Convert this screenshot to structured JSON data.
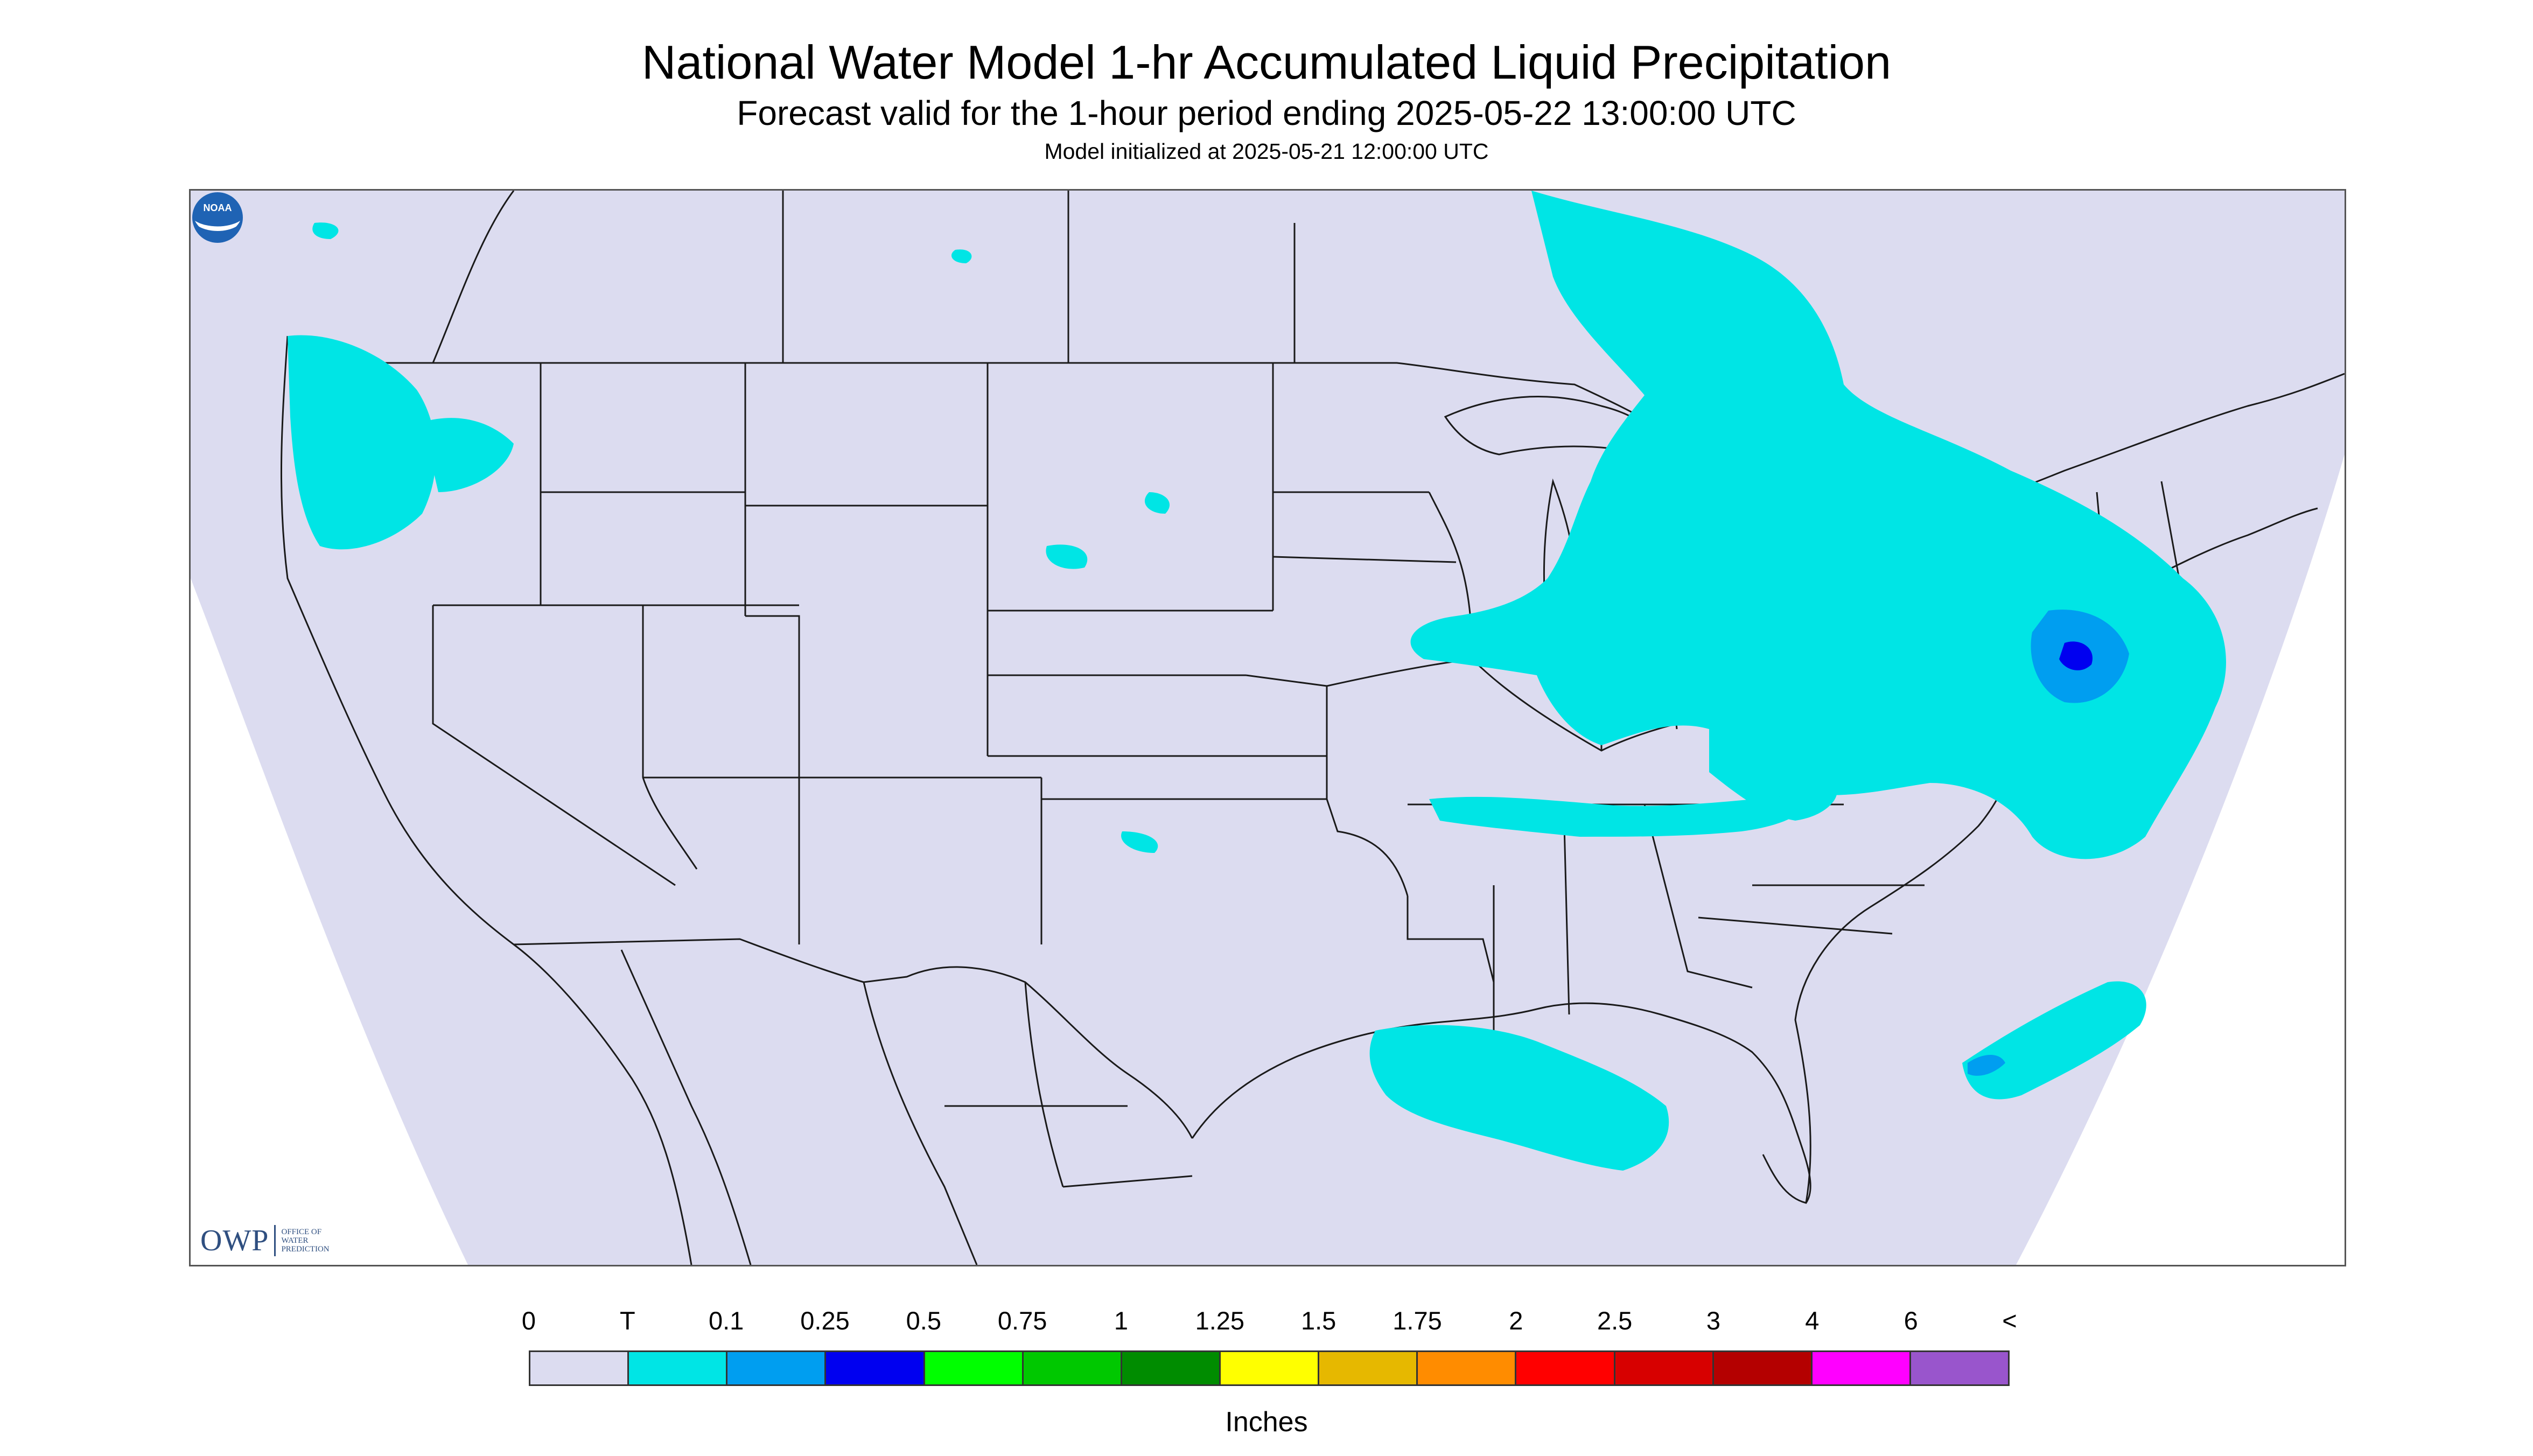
{
  "title": "National Water Model 1-hr Accumulated Liquid Precipitation",
  "subtitle": "Forecast valid for the 1-hour period ending 2025-05-22 13:00:00 UTC",
  "init_line": "Model initialized at 2025-05-21 12:00:00 UTC",
  "map": {
    "domain_color": "#dcdcf0",
    "outside_color": "#ffffff",
    "border_color": "#1a1a1a",
    "precip_colors": {
      "trace": "#00e5e5",
      "tenth": "#009ef0",
      "quarter": "#0000f0"
    }
  },
  "logos": {
    "owp_letters": "OWP",
    "owp_words": [
      "Office of",
      "Water",
      "Prediction"
    ],
    "noaa_text": "NOAA"
  },
  "legend": {
    "labels": [
      "0",
      "T",
      "0.1",
      "0.25",
      "0.5",
      "0.75",
      "1",
      "1.25",
      "1.5",
      "1.75",
      "2",
      "2.5",
      "3",
      "4",
      "6",
      "<"
    ],
    "colors": [
      "#dcdcf0",
      "#00e5e5",
      "#009ef0",
      "#0000f0",
      "#00ff00",
      "#00c800",
      "#008c00",
      "#ffff00",
      "#e6b800",
      "#ff8c00",
      "#ff0000",
      "#d70000",
      "#b40000",
      "#ff00ff",
      "#9955cc"
    ],
    "units": "Inches"
  }
}
